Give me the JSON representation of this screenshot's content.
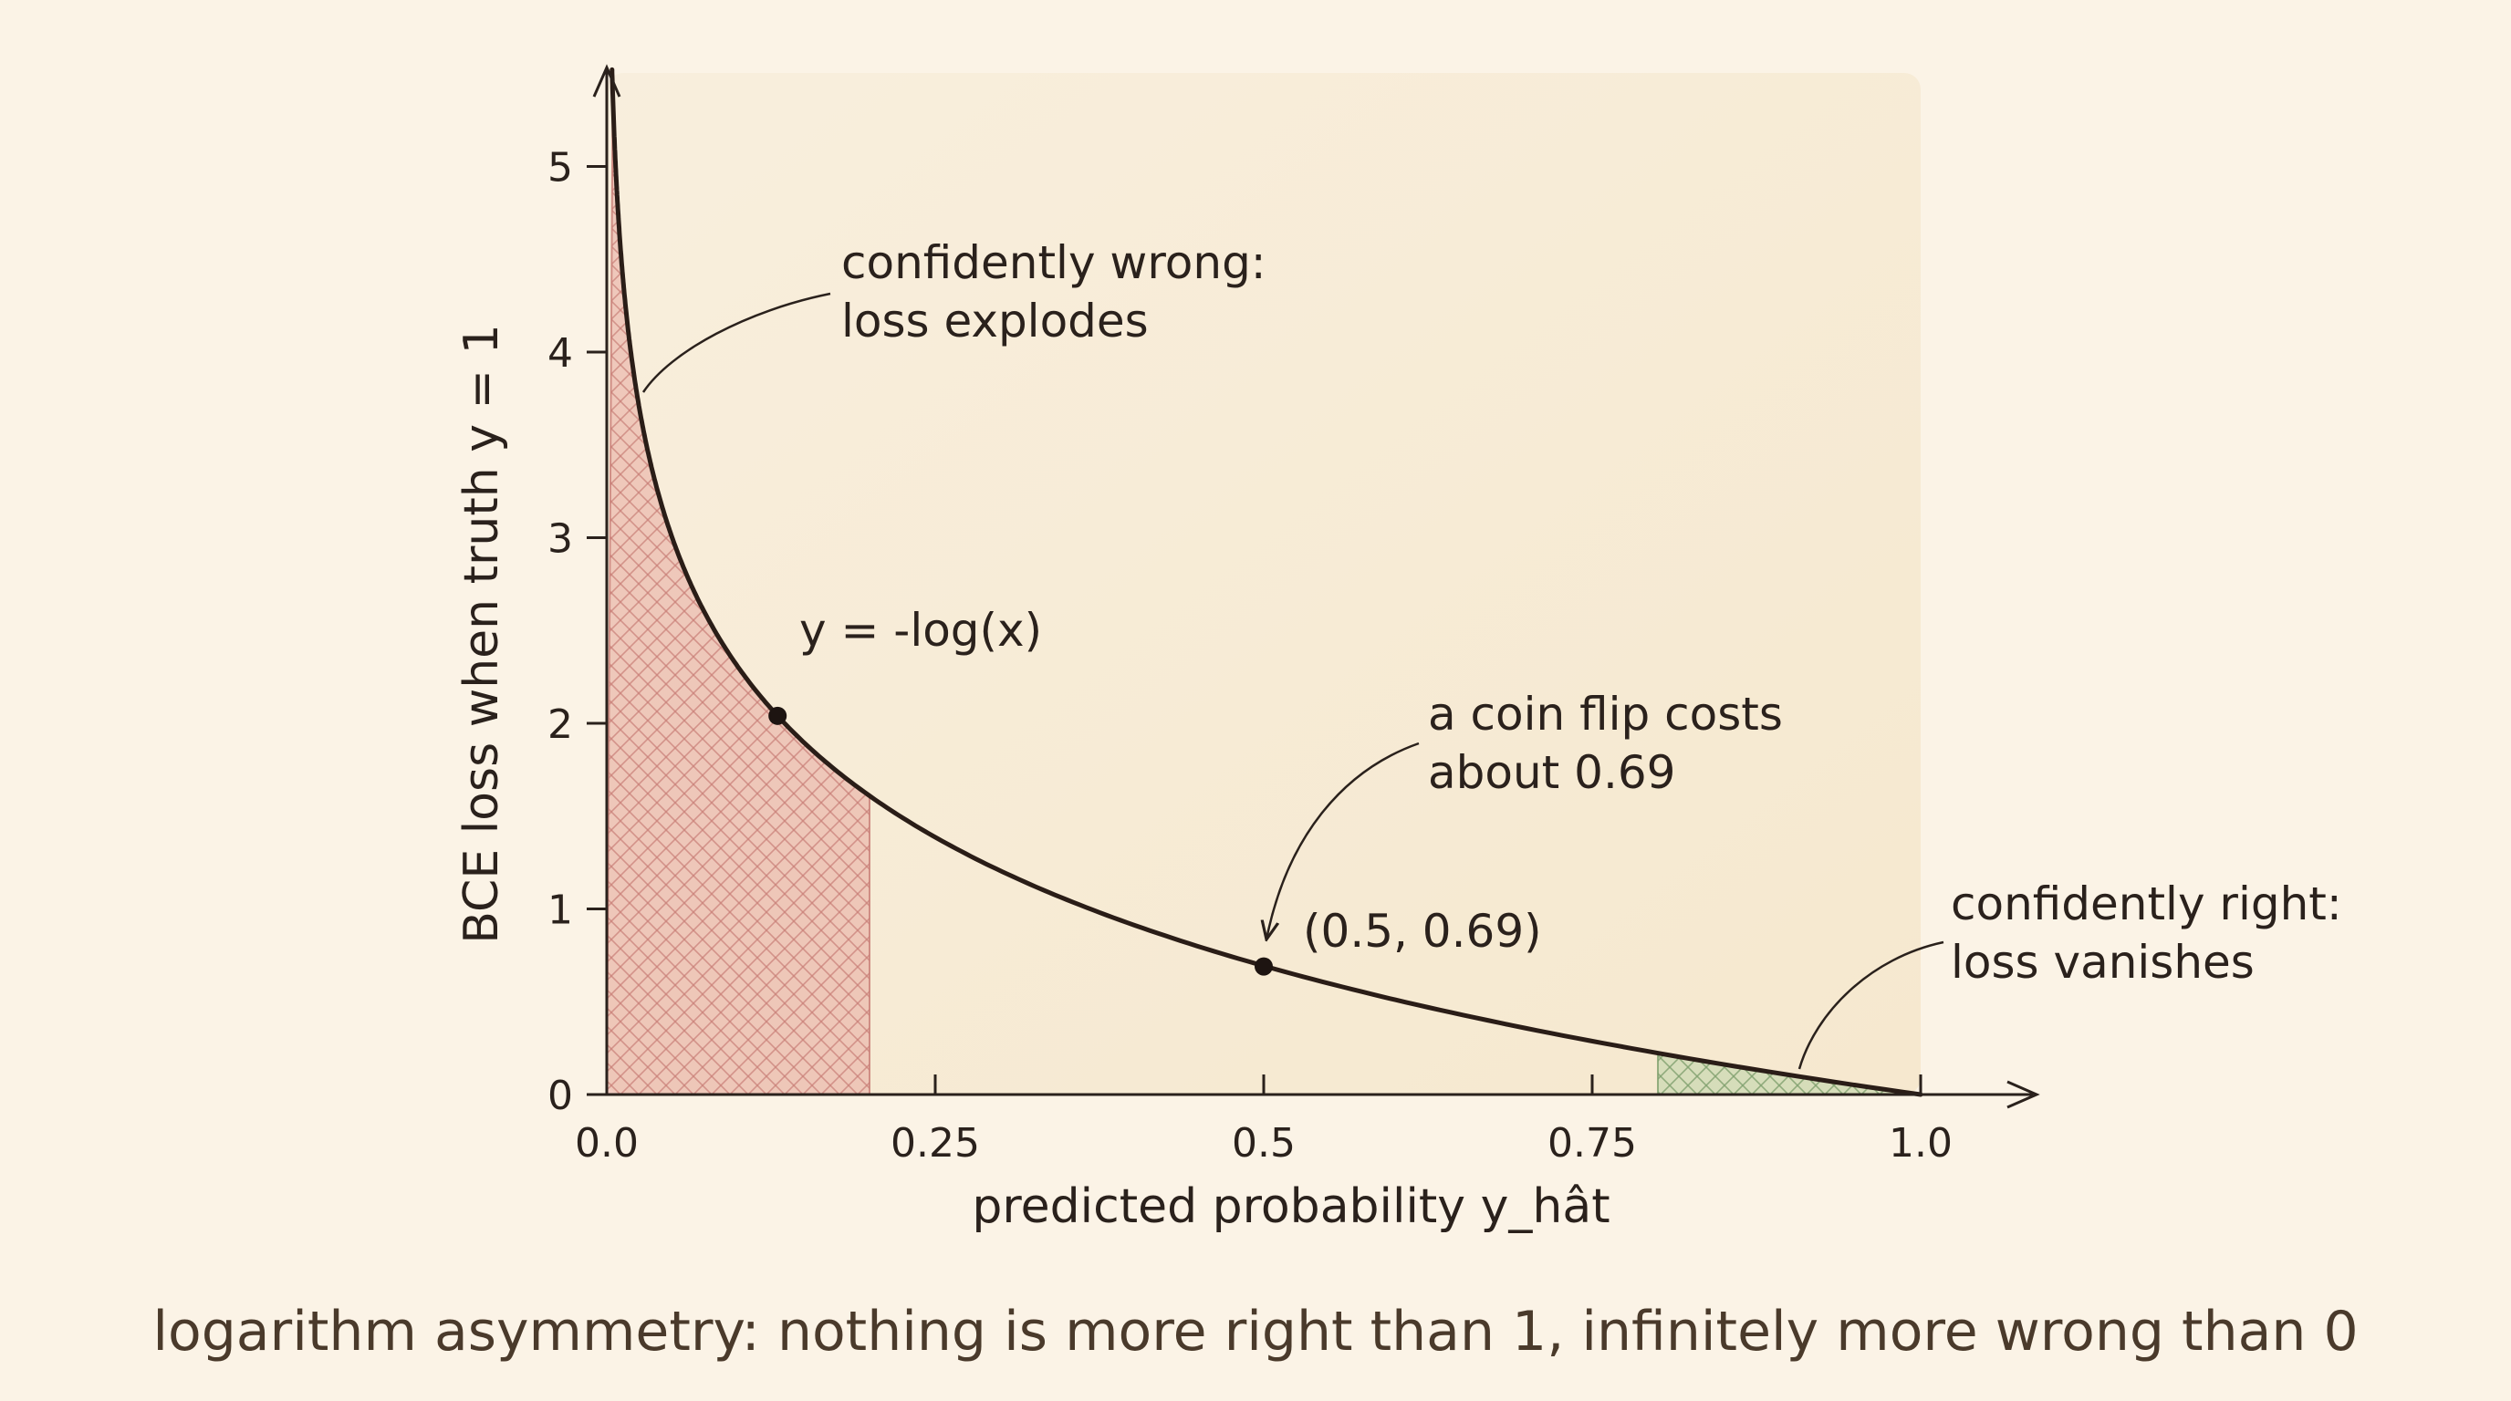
{
  "chart_data": {
    "type": "line",
    "title": "",
    "xlabel": "predicted probability y_hât",
    "ylabel": "BCE loss when truth y = 1",
    "caption": "logarithm asymmetry: nothing is more right than 1, infinitely more wrong than 0",
    "xlim": [
      0,
      1
    ],
    "ylim": [
      0,
      5.5
    ],
    "x_ticks": [
      "0.0",
      "0.25",
      "0.5",
      "0.75",
      "1.0"
    ],
    "x_tick_values": [
      0,
      0.25,
      0.5,
      0.75,
      1.0
    ],
    "y_ticks": [
      "0",
      "1",
      "2",
      "3",
      "4",
      "5"
    ],
    "y_tick_values": [
      0,
      1,
      2,
      3,
      4,
      5
    ],
    "grid": false,
    "series": [
      {
        "name": "y = -log(x)",
        "function": "-log(x)",
        "x_range": [
          0.004,
          1.0
        ],
        "color": "#2a1d17"
      }
    ],
    "shaded_regions": [
      {
        "x_range": [
          0,
          0.2
        ],
        "color": "#e8a9a0",
        "hatch_color": "#c77c74"
      },
      {
        "x_range": [
          0.8,
          1.0
        ],
        "color": "#bcd3a8",
        "hatch_color": "#7e9f6c"
      }
    ],
    "points": [
      {
        "x": 0.13,
        "y": 2.04
      },
      {
        "x": 0.5,
        "y": 0.69
      }
    ],
    "annotations": [
      {
        "id": "wrong",
        "lines": [
          "confidently wrong:",
          "loss explodes"
        ],
        "target_x": 0.03,
        "target_y": 3.95
      },
      {
        "id": "curve-label",
        "lines": [
          "y = -log(x)"
        ]
      },
      {
        "id": "coin",
        "lines": [
          "a coin flip costs",
          "about 0.69"
        ],
        "target_x": 0.5,
        "target_y": 0.82
      },
      {
        "id": "point-label",
        "lines": [
          "(0.5, 0.69)"
        ]
      },
      {
        "id": "right",
        "lines": [
          "confidently right:",
          "loss vanishes"
        ],
        "target_x": 0.91,
        "target_y": 0.12
      }
    ],
    "colors": {
      "background": "#fbf3e6",
      "panel": "#f6ead2",
      "curve": "#2a1d17",
      "axis": "#2a211c"
    }
  }
}
